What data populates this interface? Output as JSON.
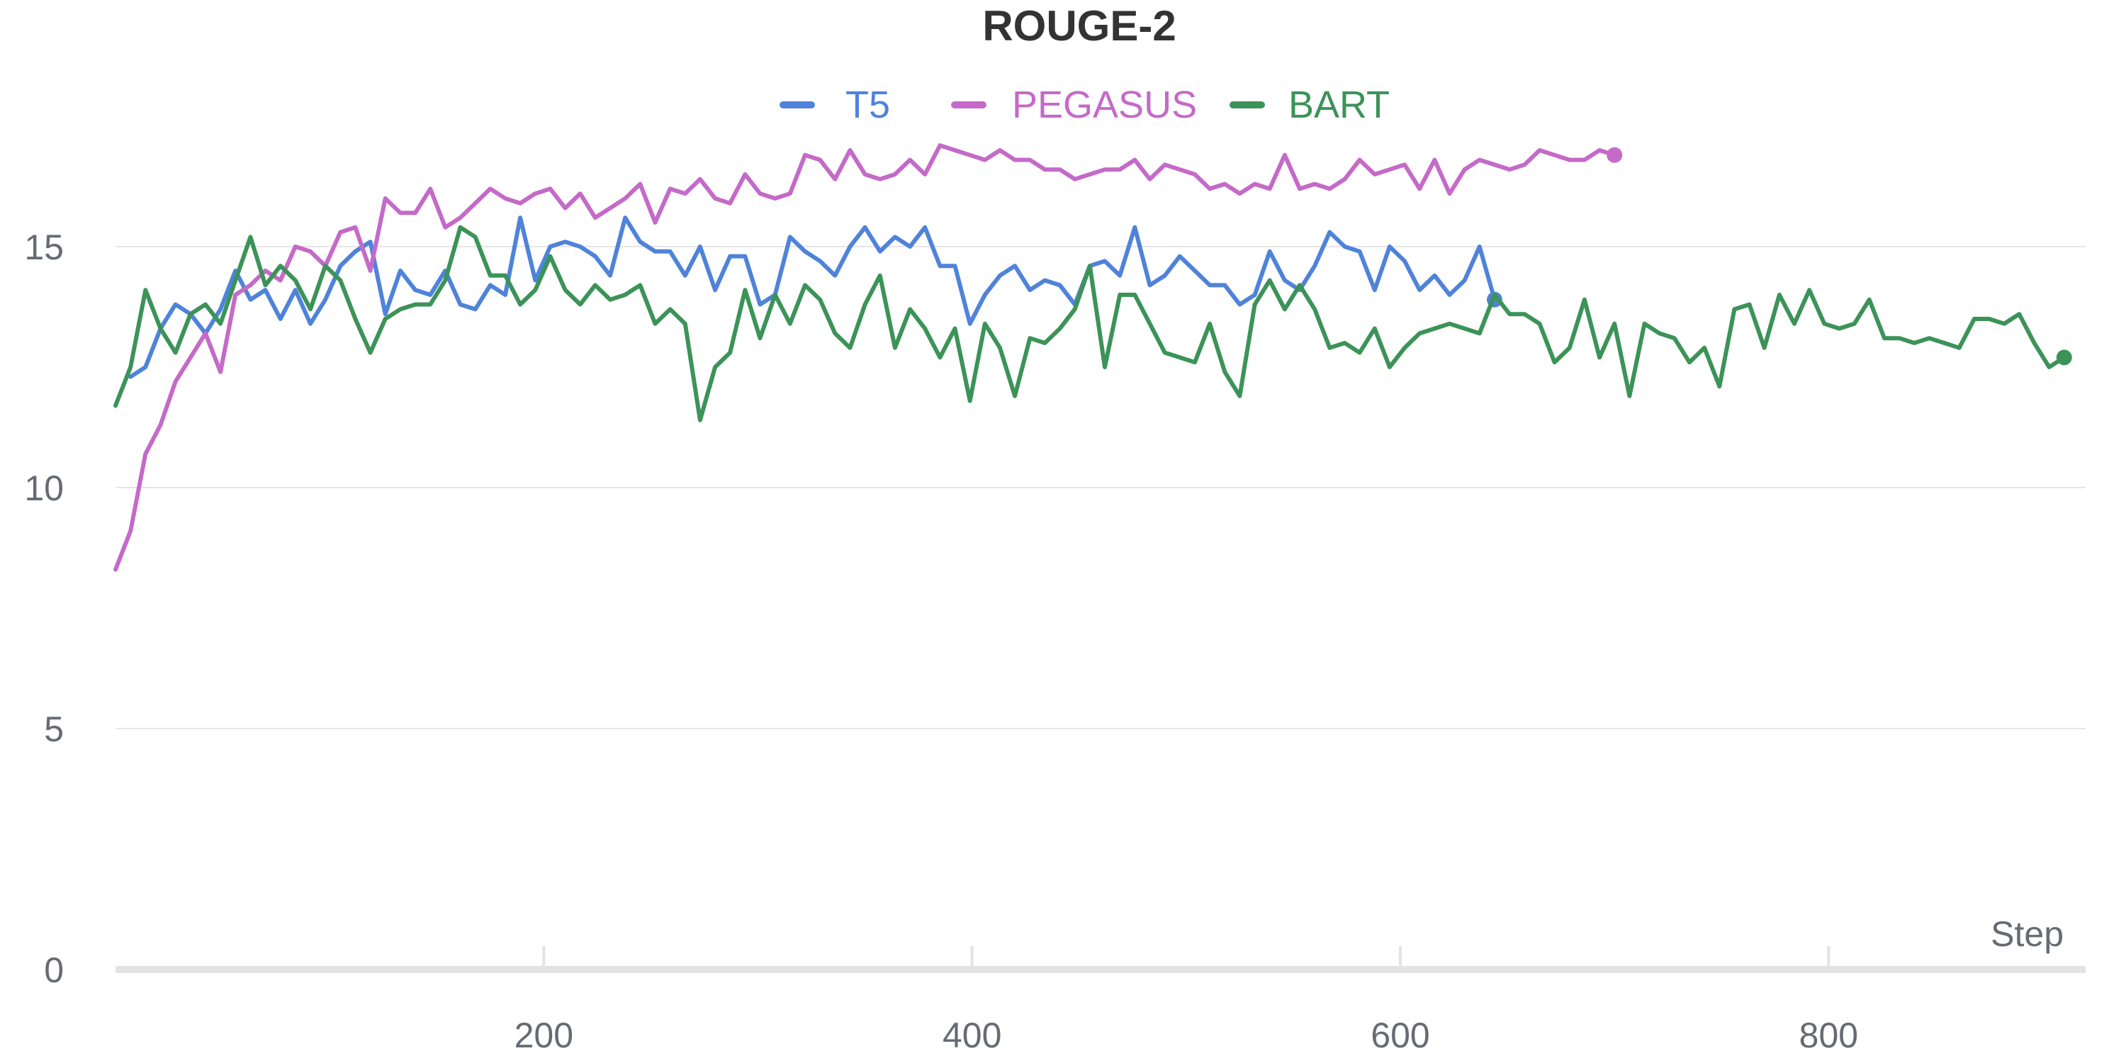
{
  "chart_data": {
    "type": "line",
    "title": "ROUGE-2",
    "xlabel": "Step",
    "ylabel": "",
    "xlim": [
      0,
      920
    ],
    "ylim": [
      0,
      18
    ],
    "xticks": [
      200,
      400,
      600,
      800
    ],
    "yticks": [
      0,
      5,
      10,
      15
    ],
    "grid": "horizontal",
    "legend_position": "top-center",
    "series": [
      {
        "name": "T5",
        "color": "#4f83da",
        "x": [
          7,
          14,
          21,
          28,
          35,
          42,
          49,
          56,
          63,
          70,
          77,
          84,
          91,
          98,
          105,
          112,
          119,
          126,
          133,
          140,
          147,
          154,
          161,
          168,
          175,
          182,
          189,
          196,
          203,
          210,
          217,
          224,
          231,
          238,
          245,
          252,
          259,
          266,
          273,
          280,
          287,
          294,
          301,
          308,
          315,
          322,
          329,
          336,
          343,
          350,
          357,
          364,
          371,
          378,
          385,
          392,
          399,
          406,
          413,
          420,
          427,
          434,
          441,
          448,
          455,
          462,
          469,
          476,
          483,
          490,
          497,
          504,
          511,
          518,
          525,
          532,
          539,
          546,
          553,
          560,
          567,
          574,
          581,
          588,
          595,
          602,
          609,
          616,
          623,
          630,
          637,
          644
        ],
        "values": [
          12.3,
          12.5,
          13.3,
          13.8,
          13.6,
          13.2,
          13.7,
          14.5,
          13.9,
          14.1,
          13.5,
          14.1,
          13.4,
          13.9,
          14.6,
          14.9,
          15.1,
          13.6,
          14.5,
          14.1,
          14.0,
          14.5,
          13.8,
          13.7,
          14.2,
          14.0,
          15.6,
          14.3,
          15.0,
          15.1,
          15.0,
          14.8,
          14.4,
          15.6,
          15.1,
          14.9,
          14.9,
          14.4,
          15.0,
          14.1,
          14.8,
          14.8,
          13.8,
          14.0,
          15.2,
          14.9,
          14.7,
          14.4,
          15.0,
          15.4,
          14.9,
          15.2,
          15.0,
          15.4,
          14.6,
          14.6,
          13.4,
          14.0,
          14.4,
          14.6,
          14.1,
          14.3,
          14.2,
          13.8,
          14.6,
          14.7,
          14.4,
          15.4,
          14.2,
          14.4,
          14.8,
          14.5,
          14.2,
          14.2,
          13.8,
          14.0,
          14.9,
          14.3,
          14.1,
          14.6,
          15.3,
          15.0,
          14.9,
          14.1,
          15.0,
          14.7,
          14.1,
          14.4,
          14.0,
          14.3,
          15.0,
          13.9
        ]
      },
      {
        "name": "PEGASUS",
        "color": "#c46ac8",
        "x": [
          0,
          7,
          14,
          21,
          28,
          35,
          42,
          49,
          56,
          63,
          70,
          77,
          84,
          91,
          98,
          105,
          112,
          119,
          126,
          133,
          140,
          147,
          154,
          161,
          168,
          175,
          182,
          189,
          196,
          203,
          210,
          217,
          224,
          231,
          238,
          245,
          252,
          259,
          266,
          273,
          280,
          287,
          294,
          301,
          308,
          315,
          322,
          329,
          336,
          343,
          350,
          357,
          364,
          371,
          378,
          385,
          392,
          399,
          406,
          413,
          420,
          427,
          434,
          441,
          448,
          455,
          462,
          469,
          476,
          483,
          490,
          497,
          504,
          511,
          518,
          525,
          532,
          539,
          546,
          553,
          560,
          567,
          574,
          581,
          588,
          595,
          602,
          609,
          616,
          623,
          630,
          637,
          644,
          651,
          658,
          665,
          672,
          679,
          686,
          693,
          700
        ],
        "values": [
          8.3,
          9.1,
          10.7,
          11.3,
          12.2,
          12.7,
          13.2,
          12.4,
          14.0,
          14.2,
          14.5,
          14.3,
          15.0,
          14.9,
          14.6,
          15.3,
          15.4,
          14.5,
          16.0,
          15.7,
          15.7,
          16.2,
          15.4,
          15.6,
          15.9,
          16.2,
          16.0,
          15.9,
          16.1,
          16.2,
          15.8,
          16.1,
          15.6,
          15.8,
          16.0,
          16.3,
          15.5,
          16.2,
          16.1,
          16.4,
          16.0,
          15.9,
          16.5,
          16.1,
          16.0,
          16.1,
          16.9,
          16.8,
          16.4,
          17.0,
          16.5,
          16.4,
          16.5,
          16.8,
          16.5,
          17.1,
          17.0,
          16.9,
          16.8,
          17.0,
          16.8,
          16.8,
          16.6,
          16.6,
          16.4,
          16.5,
          16.6,
          16.6,
          16.8,
          16.4,
          16.7,
          16.6,
          16.5,
          16.2,
          16.3,
          16.1,
          16.3,
          16.2,
          16.9,
          16.2,
          16.3,
          16.2,
          16.4,
          16.8,
          16.5,
          16.6,
          16.7,
          16.2,
          16.8,
          16.1,
          16.6,
          16.8,
          16.7,
          16.6,
          16.7,
          17.0,
          16.9,
          16.8,
          16.8,
          17.0,
          16.9
        ]
      },
      {
        "name": "BART",
        "color": "#3c9358",
        "x": [
          0,
          7,
          14,
          21,
          28,
          35,
          42,
          49,
          56,
          63,
          70,
          77,
          84,
          91,
          98,
          105,
          112,
          119,
          126,
          133,
          140,
          147,
          154,
          161,
          168,
          175,
          182,
          189,
          196,
          203,
          210,
          217,
          224,
          231,
          238,
          245,
          252,
          259,
          266,
          273,
          280,
          287,
          294,
          301,
          308,
          315,
          322,
          329,
          336,
          343,
          350,
          357,
          364,
          371,
          378,
          385,
          392,
          399,
          406,
          413,
          420,
          427,
          434,
          441,
          448,
          455,
          462,
          469,
          476,
          483,
          490,
          497,
          504,
          511,
          518,
          525,
          532,
          539,
          546,
          553,
          560,
          567,
          574,
          581,
          588,
          595,
          602,
          609,
          616,
          623,
          630,
          637,
          644,
          651,
          658,
          665,
          672,
          679,
          686,
          693,
          700,
          707,
          714,
          721,
          728,
          735,
          742,
          749,
          756,
          763,
          770,
          777,
          784,
          791,
          798,
          805,
          812,
          819,
          826,
          833,
          840,
          847,
          854,
          861,
          868,
          875,
          882,
          889,
          896,
          903,
          910
        ],
        "values": [
          11.7,
          12.5,
          14.1,
          13.3,
          12.8,
          13.6,
          13.8,
          13.4,
          14.3,
          15.2,
          14.2,
          14.6,
          14.3,
          13.7,
          14.6,
          14.3,
          13.5,
          12.8,
          13.5,
          13.7,
          13.8,
          13.8,
          14.3,
          15.4,
          15.2,
          14.4,
          14.4,
          13.8,
          14.1,
          14.8,
          14.1,
          13.8,
          14.2,
          13.9,
          14.0,
          14.2,
          13.4,
          13.7,
          13.4,
          11.4,
          12.5,
          12.8,
          14.1,
          13.1,
          14.0,
          13.4,
          14.2,
          13.9,
          13.2,
          12.9,
          13.8,
          14.4,
          12.9,
          13.7,
          13.3,
          12.7,
          13.3,
          11.8,
          13.4,
          12.9,
          11.9,
          13.1,
          13.0,
          13.3,
          13.7,
          14.6,
          12.5,
          14.0,
          14.0,
          13.4,
          12.8,
          12.7,
          12.6,
          13.4,
          12.4,
          11.9,
          13.8,
          14.3,
          13.7,
          14.2,
          13.7,
          12.9,
          13.0,
          12.8,
          13.3,
          12.5,
          12.9,
          13.2,
          13.3,
          13.4,
          13.3,
          13.2,
          14.0,
          13.6,
          13.6,
          13.4,
          12.6,
          12.9,
          13.9,
          12.7,
          13.4,
          11.9,
          13.4,
          13.2,
          13.1,
          12.6,
          12.9,
          12.1,
          13.7,
          13.8,
          12.9,
          14.0,
          13.4,
          14.1,
          13.4,
          13.3,
          13.4,
          13.9,
          13.1,
          13.1,
          13.0,
          13.1,
          13.0,
          12.9,
          13.5,
          13.5,
          13.4,
          13.6,
          13.0,
          12.5,
          12.7
        ]
      }
    ]
  }
}
